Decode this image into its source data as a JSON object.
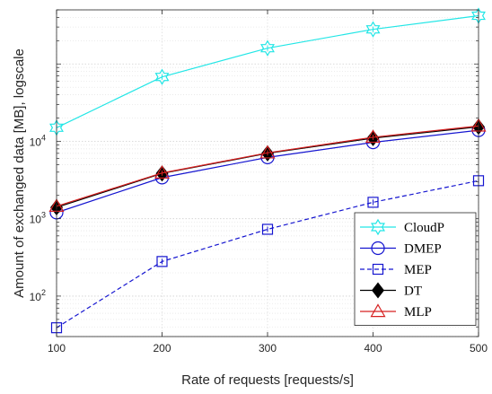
{
  "chart_data": {
    "type": "line",
    "title": "",
    "xlabel": "Rate of requests [requests/s]",
    "ylabel": "Amount of exchanged data [MB], logscale",
    "yscale": "log",
    "xlim": [
      100,
      500
    ],
    "ylim": [
      30,
      500000
    ],
    "grid": true,
    "minor_grid": true,
    "legend_position": "bottom-right",
    "x": [
      100,
      200,
      300,
      400,
      500
    ],
    "x_ticks": [
      "100",
      "200",
      "300",
      "400",
      "500"
    ],
    "y_ticks": [
      {
        "value": 100,
        "base": "10",
        "exp": "2"
      },
      {
        "value": 1000,
        "base": "10",
        "exp": "3"
      },
      {
        "value": 10000,
        "base": "10",
        "exp": "4"
      }
    ],
    "series": [
      {
        "name": "CloudP",
        "values": [
          15000,
          68000,
          160000,
          280000,
          420000
        ],
        "color": "#22e6e6",
        "dash": "solid",
        "marker": "hexagram"
      },
      {
        "name": "DMEP",
        "values": [
          1200,
          3400,
          6200,
          9700,
          13900
        ],
        "color": "#1515d0",
        "dash": "solid",
        "marker": "circle"
      },
      {
        "name": "MEP",
        "values": [
          39,
          280,
          730,
          1630,
          3100
        ],
        "color": "#1515d0",
        "dash": "dashed",
        "marker": "square"
      },
      {
        "name": "DT",
        "values": [
          1400,
          3850,
          7000,
          11000,
          15400
        ],
        "color": "#000000",
        "dash": "solid",
        "marker": "diamond"
      },
      {
        "name": "MLP",
        "values": [
          1450,
          3900,
          7100,
          11300,
          15800
        ],
        "color": "#d62020",
        "dash": "solid",
        "marker": "triangle"
      }
    ]
  }
}
